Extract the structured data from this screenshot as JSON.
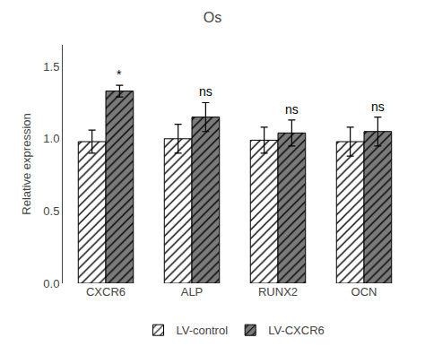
{
  "chart_data": {
    "type": "bar",
    "title": "Os",
    "ylabel": "Relative expression",
    "categories": [
      "CXCR6",
      "ALP",
      "RUNX2",
      "OCN"
    ],
    "series": [
      {
        "name": "LV-control",
        "color": "#ffffff",
        "values": [
          0.98,
          1.0,
          0.99,
          0.98
        ],
        "errors": [
          0.08,
          0.1,
          0.09,
          0.1
        ]
      },
      {
        "name": "LV-CXCR6",
        "color": "#7a7a7a",
        "values": [
          1.33,
          1.15,
          1.04,
          1.05
        ],
        "errors": [
          0.04,
          0.1,
          0.09,
          0.1
        ]
      }
    ],
    "annotations": [
      {
        "text": "*",
        "category": "CXCR6",
        "series": "LV-CXCR6"
      },
      {
        "text": "ns",
        "category": "ALP",
        "series": "LV-CXCR6"
      },
      {
        "text": "ns",
        "category": "RUNX2",
        "series": "LV-CXCR6"
      },
      {
        "text": "ns",
        "category": "OCN",
        "series": "LV-CXCR6"
      }
    ],
    "ylim": [
      0.0,
      1.65
    ],
    "yticks": [
      {
        "value": 0.0,
        "label": "0.0"
      },
      0.5,
      {
        "value": 1.0,
        "label": "1.0"
      },
      1.5
    ],
    "grid": false,
    "legend": "bottom"
  }
}
